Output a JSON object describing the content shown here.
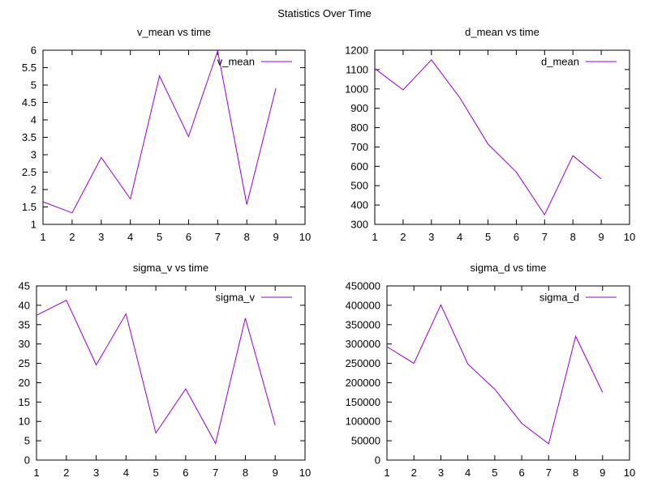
{
  "figure_title": "Statistics Over Time",
  "colors": {
    "series": "#9400d3",
    "frame": "#000000"
  },
  "chart_data": [
    {
      "type": "line",
      "title": "v_mean vs time",
      "xlabel": "",
      "ylabel": "",
      "xlim": [
        1,
        10
      ],
      "ylim": [
        1,
        6
      ],
      "x_ticks": [
        "1",
        "2",
        "3",
        "4",
        "5",
        "6",
        "7",
        "8",
        "9",
        "10"
      ],
      "y_ticks": [
        "1",
        "1.5",
        "2",
        "2.5",
        "3",
        "3.5",
        "4",
        "4.5",
        "5",
        "5.5",
        "6"
      ],
      "legend_position": "top-right",
      "grid": false,
      "series": [
        {
          "name": "v_mean",
          "x": [
            1,
            2,
            3,
            4,
            5,
            6,
            7,
            8,
            9
          ],
          "y": [
            1.65,
            1.33,
            2.92,
            1.73,
            5.26,
            3.52,
            5.98,
            1.57,
            4.91
          ]
        }
      ]
    },
    {
      "type": "line",
      "title": "d_mean vs time",
      "xlabel": "",
      "ylabel": "",
      "xlim": [
        1,
        10
      ],
      "ylim": [
        300,
        1200
      ],
      "x_ticks": [
        "1",
        "2",
        "3",
        "4",
        "5",
        "6",
        "7",
        "8",
        "9",
        "10"
      ],
      "y_ticks": [
        "300",
        "400",
        "500",
        "600",
        "700",
        "800",
        "900",
        "1000",
        "1100",
        "1200"
      ],
      "legend_position": "top-right",
      "grid": false,
      "series": [
        {
          "name": "d_mean",
          "x": [
            1,
            2,
            3,
            4,
            5,
            6,
            7,
            8,
            9
          ],
          "y": [
            1105,
            995,
            1150,
            955,
            715,
            570,
            350,
            655,
            535
          ]
        }
      ]
    },
    {
      "type": "line",
      "title": "sigma_v vs time",
      "xlabel": "",
      "ylabel": "",
      "xlim": [
        1,
        10
      ],
      "ylim": [
        0,
        45
      ],
      "x_ticks": [
        "1",
        "2",
        "3",
        "4",
        "5",
        "6",
        "7",
        "8",
        "9",
        "10"
      ],
      "y_ticks": [
        "0",
        "5",
        "10",
        "15",
        "20",
        "25",
        "30",
        "35",
        "40",
        "45"
      ],
      "legend_position": "top-right",
      "grid": false,
      "series": [
        {
          "name": "sigma_v",
          "x": [
            1,
            2,
            3,
            4,
            5,
            6,
            7,
            8,
            9
          ],
          "y": [
            37.4,
            41.3,
            24.6,
            37.8,
            7.0,
            18.4,
            4.3,
            36.7,
            9.0
          ]
        }
      ]
    },
    {
      "type": "line",
      "title": "sigma_d vs time",
      "xlabel": "",
      "ylabel": "",
      "xlim": [
        1,
        10
      ],
      "ylim": [
        0,
        450000
      ],
      "x_ticks": [
        "1",
        "2",
        "3",
        "4",
        "5",
        "6",
        "7",
        "8",
        "9",
        "10"
      ],
      "y_ticks": [
        "0",
        "50000",
        "100000",
        "150000",
        "200000",
        "250000",
        "300000",
        "350000",
        "400000",
        "450000"
      ],
      "legend_position": "top-right",
      "grid": false,
      "series": [
        {
          "name": "sigma_d",
          "x": [
            1,
            2,
            3,
            4,
            5,
            6,
            7,
            8,
            9
          ],
          "y": [
            293000,
            250000,
            401000,
            248000,
            183000,
            95000,
            42000,
            320000,
            175000
          ]
        }
      ]
    }
  ]
}
